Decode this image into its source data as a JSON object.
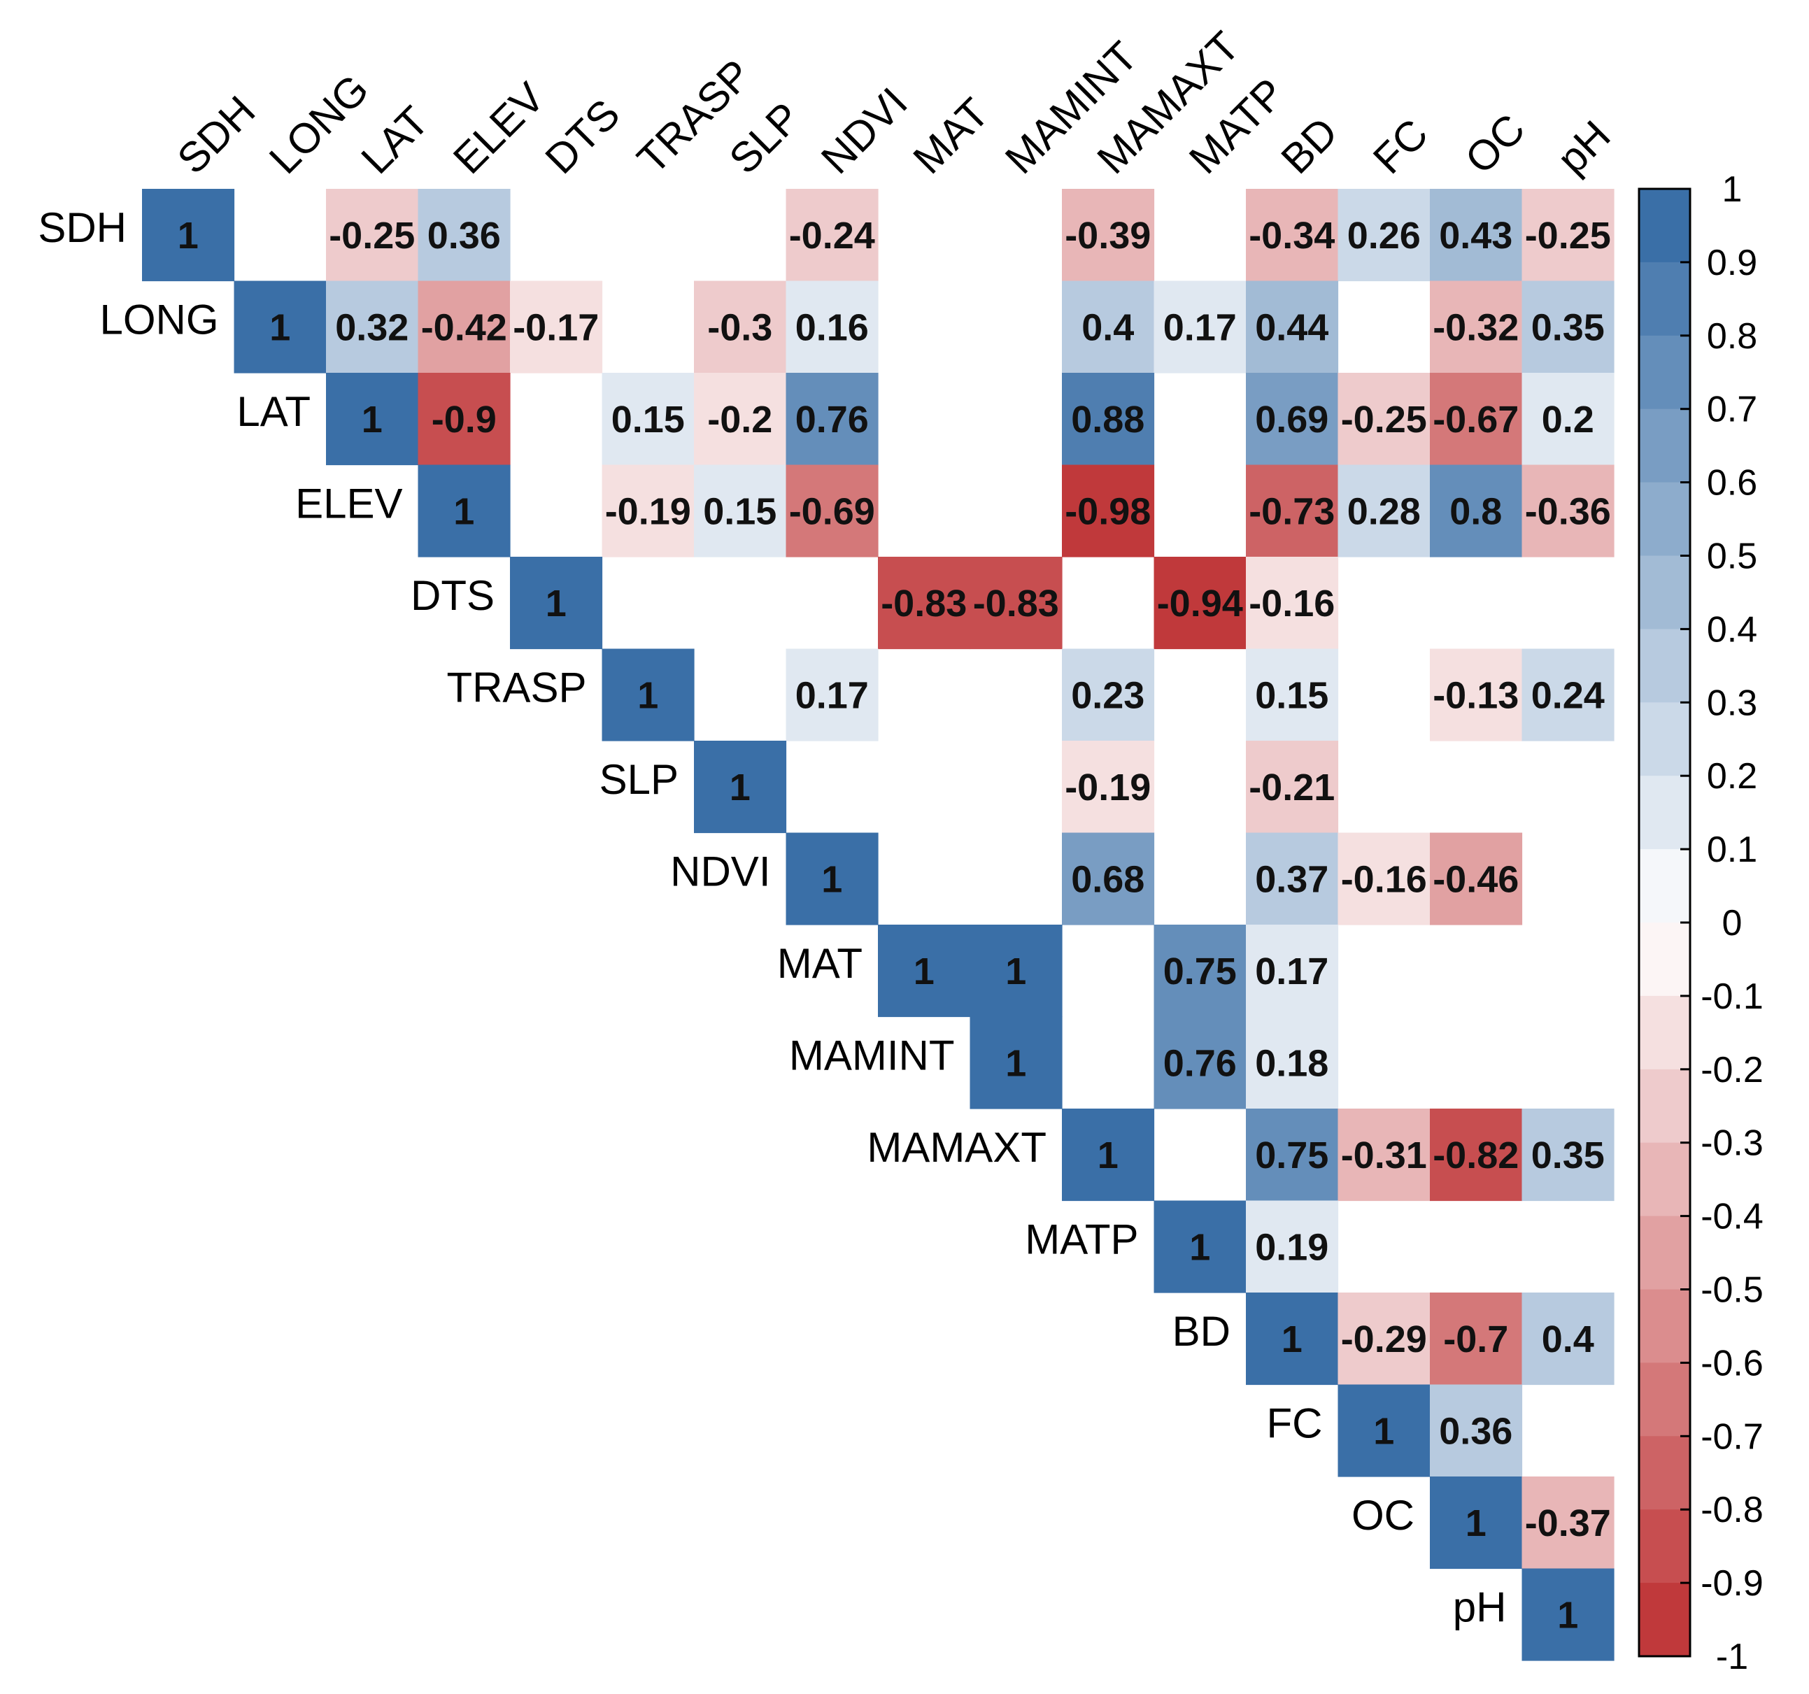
{
  "chart_data": {
    "type": "heatmap",
    "title": "",
    "variables": [
      "SDH",
      "LONG",
      "LAT",
      "ELEV",
      "DTS",
      "TRASP",
      "SLP",
      "NDVI",
      "MAT",
      "MAMINT",
      "MAMAXT",
      "MATP",
      "BD",
      "FC",
      "OC",
      "pH"
    ],
    "layout": "upper-triangle",
    "cells": [
      {
        "row": "SDH",
        "col": "SDH",
        "value": 1,
        "label": "1"
      },
      {
        "row": "SDH",
        "col": "LAT",
        "value": -0.25,
        "label": "-0.25"
      },
      {
        "row": "SDH",
        "col": "ELEV",
        "value": 0.36,
        "label": "0.36"
      },
      {
        "row": "SDH",
        "col": "NDVI",
        "value": -0.24,
        "label": "-0.24"
      },
      {
        "row": "SDH",
        "col": "MAMAXT",
        "value": -0.39,
        "label": "-0.39"
      },
      {
        "row": "SDH",
        "col": "BD",
        "value": -0.34,
        "label": "-0.34"
      },
      {
        "row": "SDH",
        "col": "FC",
        "value": 0.26,
        "label": "0.26"
      },
      {
        "row": "SDH",
        "col": "OC",
        "value": 0.43,
        "label": "0.43"
      },
      {
        "row": "SDH",
        "col": "pH",
        "value": -0.25,
        "label": "-0.25"
      },
      {
        "row": "LONG",
        "col": "LONG",
        "value": 1,
        "label": "1"
      },
      {
        "row": "LONG",
        "col": "LAT",
        "value": 0.32,
        "label": "0.32"
      },
      {
        "row": "LONG",
        "col": "ELEV",
        "value": -0.42,
        "label": "-0.42"
      },
      {
        "row": "LONG",
        "col": "DTS",
        "value": -0.17,
        "label": "-0.17"
      },
      {
        "row": "LONG",
        "col": "SLP",
        "value": -0.3,
        "label": "-0.3"
      },
      {
        "row": "LONG",
        "col": "NDVI",
        "value": 0.16,
        "label": "0.16"
      },
      {
        "row": "LONG",
        "col": "MAMAXT",
        "value": 0.4,
        "label": "0.4"
      },
      {
        "row": "LONG",
        "col": "MATP",
        "value": 0.17,
        "label": "0.17"
      },
      {
        "row": "LONG",
        "col": "BD",
        "value": 0.44,
        "label": "0.44"
      },
      {
        "row": "LONG",
        "col": "OC",
        "value": -0.32,
        "label": "-0.32"
      },
      {
        "row": "LONG",
        "col": "pH",
        "value": 0.35,
        "label": "0.35"
      },
      {
        "row": "LAT",
        "col": "LAT",
        "value": 1,
        "label": "1"
      },
      {
        "row": "LAT",
        "col": "ELEV",
        "value": -0.9,
        "label": "-0.9"
      },
      {
        "row": "LAT",
        "col": "TRASP",
        "value": 0.15,
        "label": "0.15"
      },
      {
        "row": "LAT",
        "col": "SLP",
        "value": -0.2,
        "label": "-0.2"
      },
      {
        "row": "LAT",
        "col": "NDVI",
        "value": 0.76,
        "label": "0.76"
      },
      {
        "row": "LAT",
        "col": "MAMAXT",
        "value": 0.88,
        "label": "0.88"
      },
      {
        "row": "LAT",
        "col": "BD",
        "value": 0.69,
        "label": "0.69"
      },
      {
        "row": "LAT",
        "col": "FC",
        "value": -0.25,
        "label": "-0.25"
      },
      {
        "row": "LAT",
        "col": "OC",
        "value": -0.67,
        "label": "-0.67"
      },
      {
        "row": "LAT",
        "col": "pH",
        "value": 0.2,
        "label": "0.2"
      },
      {
        "row": "ELEV",
        "col": "ELEV",
        "value": 1,
        "label": "1"
      },
      {
        "row": "ELEV",
        "col": "TRASP",
        "value": -0.19,
        "label": "-0.19"
      },
      {
        "row": "ELEV",
        "col": "SLP",
        "value": 0.15,
        "label": "0.15"
      },
      {
        "row": "ELEV",
        "col": "NDVI",
        "value": -0.69,
        "label": "-0.69"
      },
      {
        "row": "ELEV",
        "col": "MAMAXT",
        "value": -0.98,
        "label": "-0.98"
      },
      {
        "row": "ELEV",
        "col": "BD",
        "value": -0.73,
        "label": "-0.73"
      },
      {
        "row": "ELEV",
        "col": "FC",
        "value": 0.28,
        "label": "0.28"
      },
      {
        "row": "ELEV",
        "col": "OC",
        "value": 0.8,
        "label": "0.8"
      },
      {
        "row": "ELEV",
        "col": "pH",
        "value": -0.36,
        "label": "-0.36"
      },
      {
        "row": "DTS",
        "col": "DTS",
        "value": 1,
        "label": "1"
      },
      {
        "row": "DTS",
        "col": "MAT",
        "value": -0.83,
        "label": "-0.83"
      },
      {
        "row": "DTS",
        "col": "MAMINT",
        "value": -0.83,
        "label": "-0.83"
      },
      {
        "row": "DTS",
        "col": "MATP",
        "value": -0.94,
        "label": "-0.94"
      },
      {
        "row": "DTS",
        "col": "BD",
        "value": -0.16,
        "label": "-0.16"
      },
      {
        "row": "TRASP",
        "col": "TRASP",
        "value": 1,
        "label": "1"
      },
      {
        "row": "TRASP",
        "col": "NDVI",
        "value": 0.17,
        "label": "0.17"
      },
      {
        "row": "TRASP",
        "col": "MAMAXT",
        "value": 0.23,
        "label": "0.23"
      },
      {
        "row": "TRASP",
        "col": "BD",
        "value": 0.15,
        "label": "0.15"
      },
      {
        "row": "TRASP",
        "col": "OC",
        "value": -0.13,
        "label": "-0.13"
      },
      {
        "row": "TRASP",
        "col": "pH",
        "value": 0.24,
        "label": "0.24"
      },
      {
        "row": "SLP",
        "col": "SLP",
        "value": 1,
        "label": "1"
      },
      {
        "row": "SLP",
        "col": "MAMAXT",
        "value": -0.19,
        "label": "-0.19"
      },
      {
        "row": "SLP",
        "col": "BD",
        "value": -0.21,
        "label": "-0.21"
      },
      {
        "row": "NDVI",
        "col": "NDVI",
        "value": 1,
        "label": "1"
      },
      {
        "row": "NDVI",
        "col": "MAMAXT",
        "value": 0.68,
        "label": "0.68"
      },
      {
        "row": "NDVI",
        "col": "BD",
        "value": 0.37,
        "label": "0.37"
      },
      {
        "row": "NDVI",
        "col": "FC",
        "value": -0.16,
        "label": "-0.16"
      },
      {
        "row": "NDVI",
        "col": "OC",
        "value": -0.46,
        "label": "-0.46"
      },
      {
        "row": "MAT",
        "col": "MAT",
        "value": 1,
        "label": "1"
      },
      {
        "row": "MAT",
        "col": "MAMINT",
        "value": 1,
        "label": "1"
      },
      {
        "row": "MAT",
        "col": "MATP",
        "value": 0.75,
        "label": "0.75"
      },
      {
        "row": "MAT",
        "col": "BD",
        "value": 0.17,
        "label": "0.17"
      },
      {
        "row": "MAMINT",
        "col": "MAMINT",
        "value": 1,
        "label": "1"
      },
      {
        "row": "MAMINT",
        "col": "MATP",
        "value": 0.76,
        "label": "0.76"
      },
      {
        "row": "MAMINT",
        "col": "BD",
        "value": 0.18,
        "label": "0.18"
      },
      {
        "row": "MAMAXT",
        "col": "MAMAXT",
        "value": 1,
        "label": "1"
      },
      {
        "row": "MAMAXT",
        "col": "BD",
        "value": 0.75,
        "label": "0.75"
      },
      {
        "row": "MAMAXT",
        "col": "FC",
        "value": -0.31,
        "label": "-0.31"
      },
      {
        "row": "MAMAXT",
        "col": "OC",
        "value": -0.82,
        "label": "-0.82"
      },
      {
        "row": "MAMAXT",
        "col": "pH",
        "value": 0.35,
        "label": "0.35"
      },
      {
        "row": "MATP",
        "col": "MATP",
        "value": 1,
        "label": "1"
      },
      {
        "row": "MATP",
        "col": "BD",
        "value": 0.19,
        "label": "0.19"
      },
      {
        "row": "BD",
        "col": "BD",
        "value": 1,
        "label": "1"
      },
      {
        "row": "BD",
        "col": "FC",
        "value": -0.29,
        "label": "-0.29"
      },
      {
        "row": "BD",
        "col": "OC",
        "value": -0.7,
        "label": "-0.7"
      },
      {
        "row": "BD",
        "col": "pH",
        "value": 0.4,
        "label": "0.4"
      },
      {
        "row": "FC",
        "col": "FC",
        "value": 1,
        "label": "1"
      },
      {
        "row": "FC",
        "col": "OC",
        "value": 0.36,
        "label": "0.36"
      },
      {
        "row": "OC",
        "col": "OC",
        "value": 1,
        "label": "1"
      },
      {
        "row": "OC",
        "col": "pH",
        "value": -0.37,
        "label": "-0.37"
      },
      {
        "row": "pH",
        "col": "pH",
        "value": 1,
        "label": "1"
      }
    ],
    "colorbar": {
      "range": [
        -1,
        1
      ],
      "ticks": [
        "1",
        "0.9",
        "0.8",
        "0.7",
        "0.6",
        "0.5",
        "0.4",
        "0.3",
        "0.2",
        "0.1",
        "0",
        "-0.1",
        "-0.2",
        "-0.3",
        "-0.4",
        "-0.5",
        "-0.6",
        "-0.7",
        "-0.8",
        "-0.9",
        "-1"
      ],
      "positive_color": "#3a6fa7",
      "negative_color": "#c0393b",
      "neutral_color": "#ffffff",
      "levels": 20
    }
  }
}
